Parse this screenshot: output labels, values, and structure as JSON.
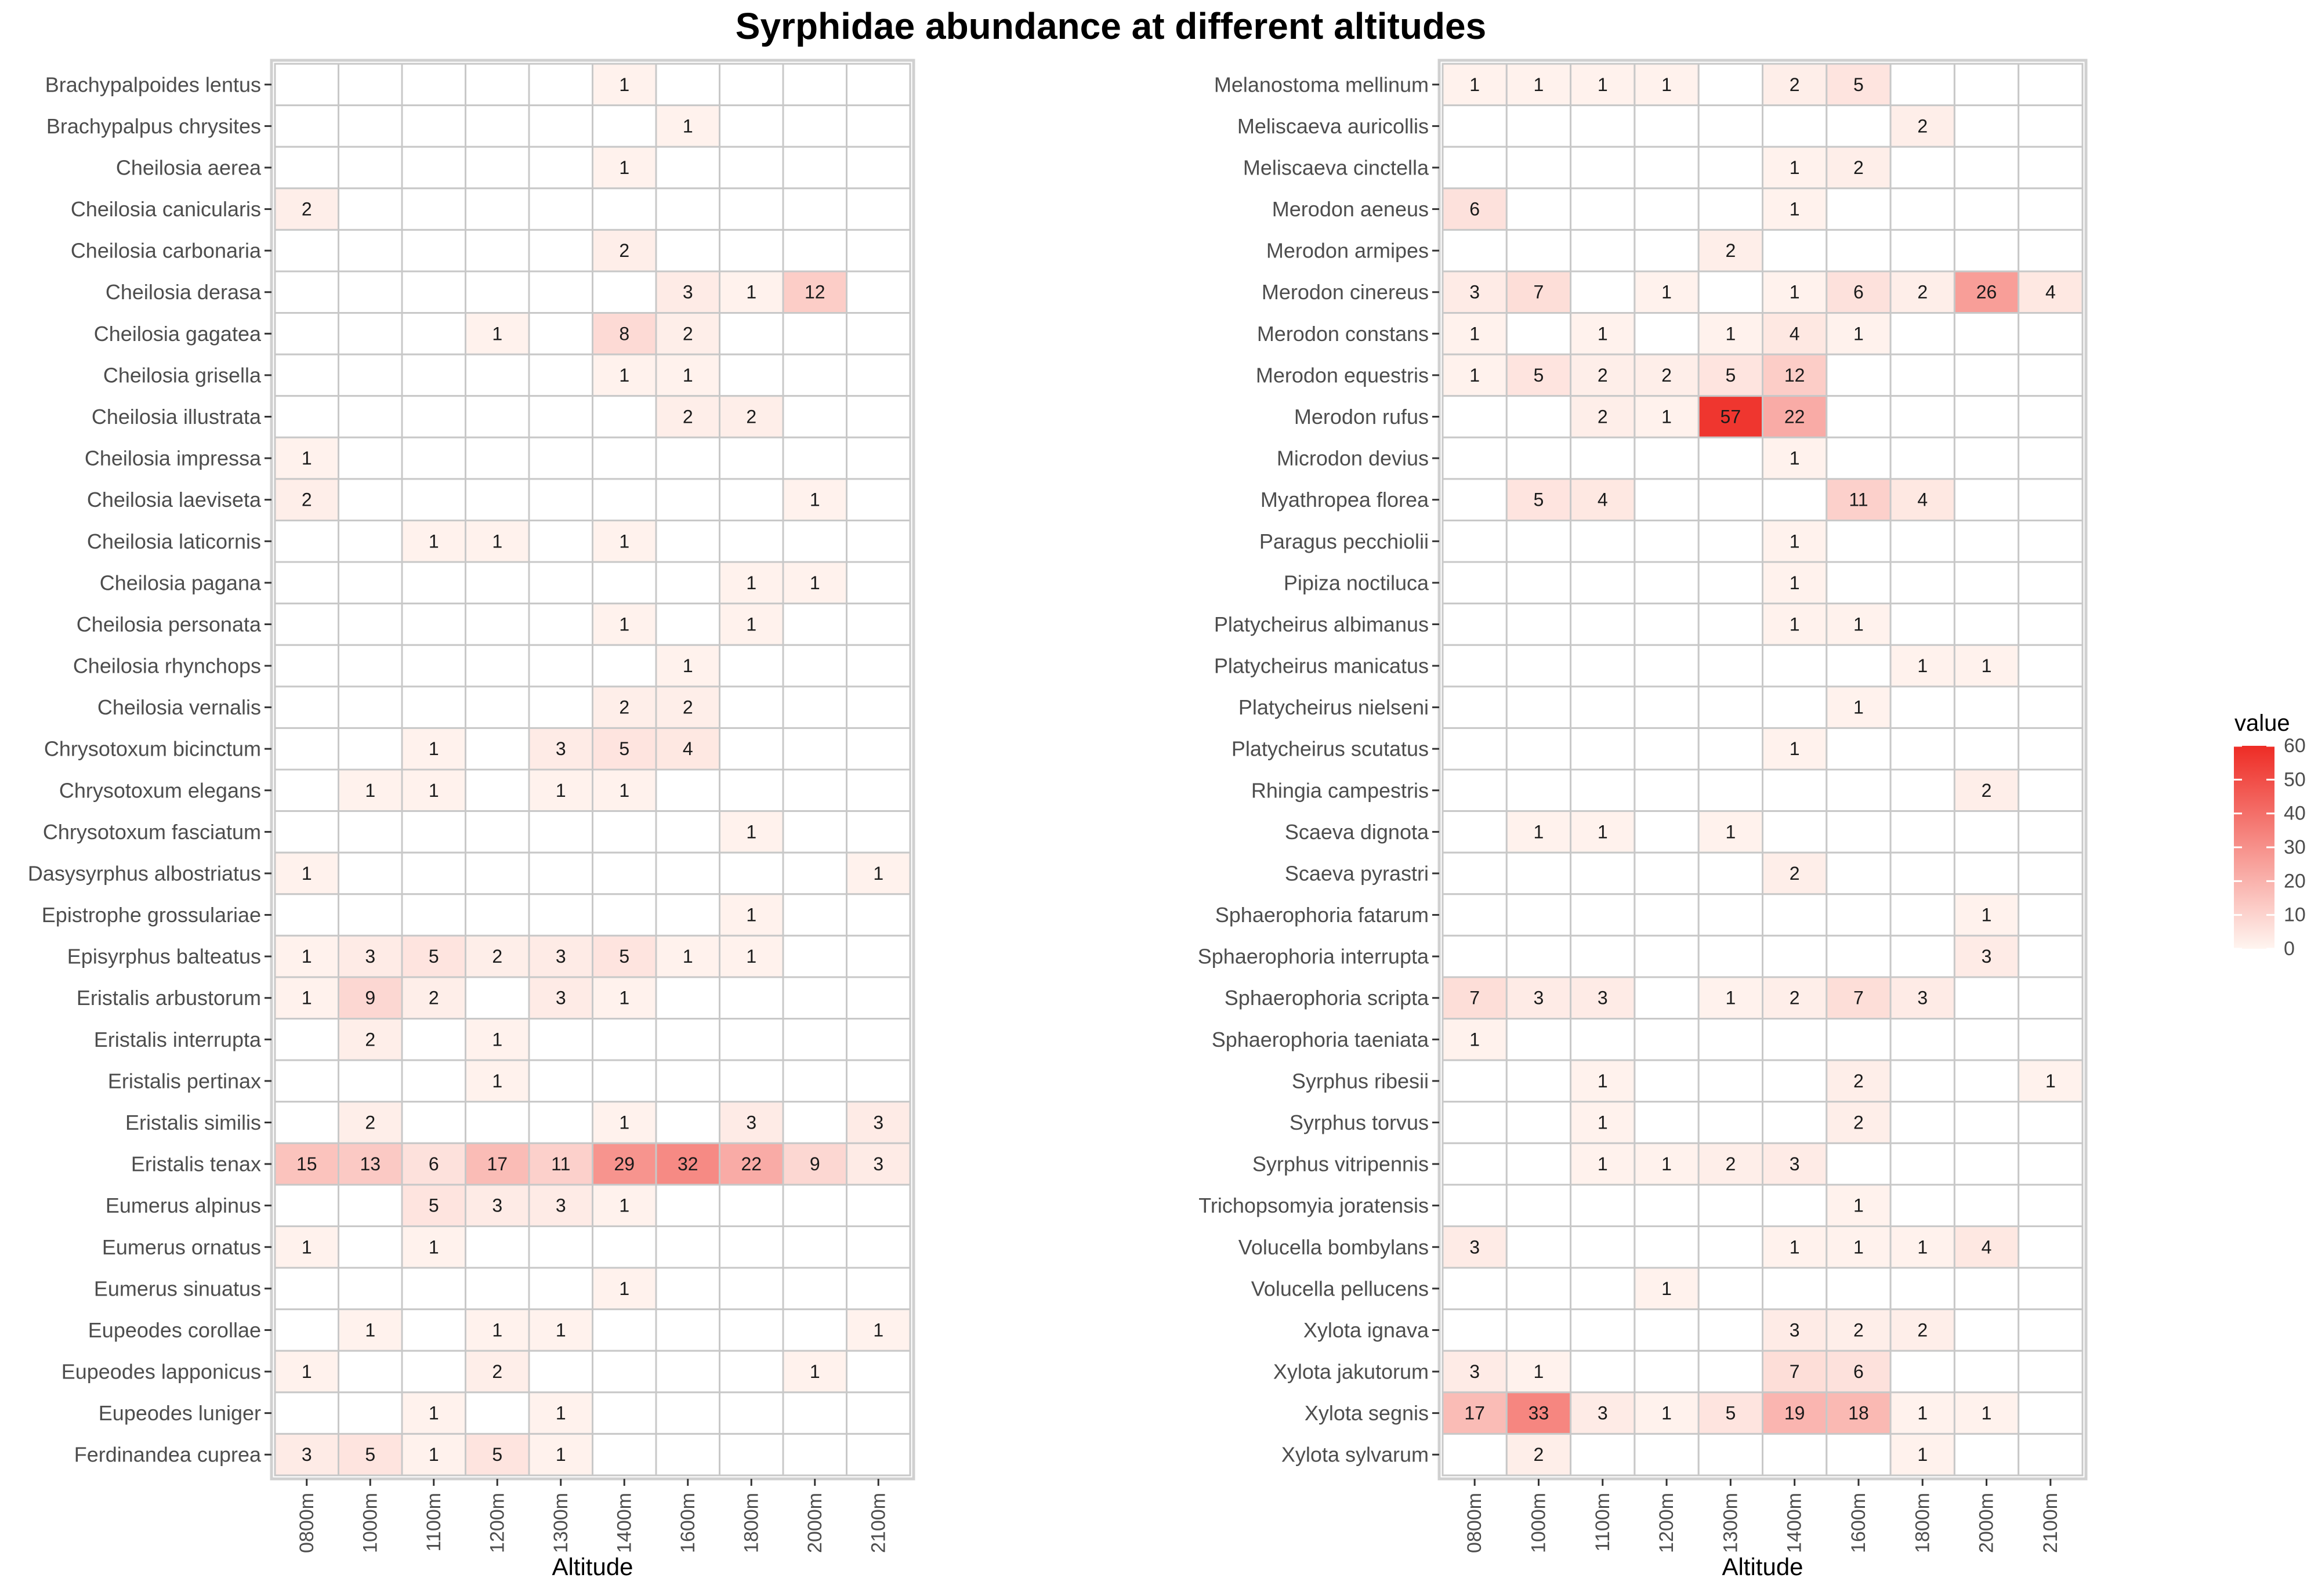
{
  "title": "Syrphidae abundance at different altitudes",
  "chart_data": [
    {
      "type": "heatmap",
      "xlabel": "Altitude",
      "x": [
        "0800m",
        "1000m",
        "1100m",
        "1200m",
        "1300m",
        "1400m",
        "1600m",
        "1800m",
        "2000m",
        "2100m"
      ],
      "y": [
        "Brachypalpoides lentus",
        "Brachypalpus chrysites",
        "Cheilosia aerea",
        "Cheilosia canicularis",
        "Cheilosia carbonaria",
        "Cheilosia derasa",
        "Cheilosia gagatea",
        "Cheilosia grisella",
        "Cheilosia illustrata",
        "Cheilosia impressa",
        "Cheilosia laeviseta",
        "Cheilosia laticornis",
        "Cheilosia pagana",
        "Cheilosia personata",
        "Cheilosia rhynchops",
        "Cheilosia vernalis",
        "Chrysotoxum bicinctum",
        "Chrysotoxum elegans",
        "Chrysotoxum fasciatum",
        "Dasysyrphus albostriatus",
        "Epistrophe grossulariae",
        "Episyrphus balteatus",
        "Eristalis arbustorum",
        "Eristalis interrupta",
        "Eristalis pertinax",
        "Eristalis similis",
        "Eristalis tenax",
        "Eumerus alpinus",
        "Eumerus ornatus",
        "Eumerus sinuatus",
        "Eupeodes corollae",
        "Eupeodes lapponicus",
        "Eupeodes luniger",
        "Ferdinandea cuprea"
      ],
      "values": [
        [
          null,
          null,
          null,
          null,
          null,
          1,
          null,
          null,
          null,
          null
        ],
        [
          null,
          null,
          null,
          null,
          null,
          null,
          1,
          null,
          null,
          null
        ],
        [
          null,
          null,
          null,
          null,
          null,
          1,
          null,
          null,
          null,
          null
        ],
        [
          2,
          null,
          null,
          null,
          null,
          null,
          null,
          null,
          null,
          null
        ],
        [
          null,
          null,
          null,
          null,
          null,
          2,
          null,
          null,
          null,
          null
        ],
        [
          null,
          null,
          null,
          null,
          null,
          null,
          3,
          1,
          12,
          null
        ],
        [
          null,
          null,
          null,
          1,
          null,
          8,
          2,
          null,
          null,
          null
        ],
        [
          null,
          null,
          null,
          null,
          null,
          1,
          1,
          null,
          null,
          null
        ],
        [
          null,
          null,
          null,
          null,
          null,
          null,
          2,
          2,
          null,
          null
        ],
        [
          1,
          null,
          null,
          null,
          null,
          null,
          null,
          null,
          null,
          null
        ],
        [
          2,
          null,
          null,
          null,
          null,
          null,
          null,
          null,
          1,
          null
        ],
        [
          null,
          null,
          1,
          1,
          null,
          1,
          null,
          null,
          null,
          null
        ],
        [
          null,
          null,
          null,
          null,
          null,
          null,
          null,
          1,
          1,
          null
        ],
        [
          null,
          null,
          null,
          null,
          null,
          1,
          null,
          1,
          null,
          null
        ],
        [
          null,
          null,
          null,
          null,
          null,
          null,
          1,
          null,
          null,
          null
        ],
        [
          null,
          null,
          null,
          null,
          null,
          2,
          2,
          null,
          null,
          null
        ],
        [
          null,
          null,
          1,
          null,
          3,
          5,
          4,
          null,
          null,
          null
        ],
        [
          null,
          1,
          1,
          null,
          1,
          1,
          null,
          null,
          null,
          null
        ],
        [
          null,
          null,
          null,
          null,
          null,
          null,
          null,
          1,
          null,
          null
        ],
        [
          1,
          null,
          null,
          null,
          null,
          null,
          null,
          null,
          null,
          1
        ],
        [
          null,
          null,
          null,
          null,
          null,
          null,
          null,
          1,
          null,
          null
        ],
        [
          1,
          3,
          5,
          2,
          3,
          5,
          1,
          1,
          null,
          null
        ],
        [
          1,
          9,
          2,
          null,
          3,
          1,
          null,
          null,
          null,
          null
        ],
        [
          null,
          2,
          null,
          1,
          null,
          null,
          null,
          null,
          null,
          null
        ],
        [
          null,
          null,
          null,
          1,
          null,
          null,
          null,
          null,
          null,
          null
        ],
        [
          null,
          2,
          null,
          null,
          null,
          1,
          null,
          3,
          null,
          3
        ],
        [
          15,
          13,
          6,
          17,
          11,
          29,
          32,
          22,
          9,
          3
        ],
        [
          null,
          null,
          5,
          3,
          3,
          1,
          null,
          null,
          null,
          null
        ],
        [
          1,
          null,
          1,
          null,
          null,
          null,
          null,
          null,
          null,
          null
        ],
        [
          null,
          null,
          null,
          null,
          null,
          1,
          null,
          null,
          null,
          null
        ],
        [
          null,
          1,
          null,
          1,
          1,
          null,
          null,
          null,
          null,
          1
        ],
        [
          1,
          null,
          null,
          2,
          null,
          null,
          null,
          null,
          1,
          null
        ],
        [
          null,
          null,
          1,
          null,
          1,
          null,
          null,
          null,
          null,
          null
        ],
        [
          3,
          5,
          1,
          5,
          1,
          null,
          null,
          null,
          null,
          null
        ]
      ]
    },
    {
      "type": "heatmap",
      "xlabel": "Altitude",
      "x": [
        "0800m",
        "1000m",
        "1100m",
        "1200m",
        "1300m",
        "1400m",
        "1600m",
        "1800m",
        "2000m",
        "2100m"
      ],
      "y": [
        "Melanostoma mellinum",
        "Meliscaeva auricollis",
        "Meliscaeva cinctella",
        "Merodon aeneus",
        "Merodon armipes",
        "Merodon cinereus",
        "Merodon constans",
        "Merodon equestris",
        "Merodon rufus",
        "Microdon devius",
        "Myathropea florea",
        "Paragus pecchiolii",
        "Pipiza noctiluca",
        "Platycheirus albimanus",
        "Platycheirus manicatus",
        "Platycheirus nielseni",
        "Platycheirus scutatus",
        "Rhingia campestris",
        "Scaeva dignota",
        "Scaeva pyrastri",
        "Sphaerophoria fatarum",
        "Sphaerophoria interrupta",
        "Sphaerophoria scripta",
        "Sphaerophoria taeniata",
        "Syrphus ribesii",
        "Syrphus torvus",
        "Syrphus vitripennis",
        "Trichopsomyia joratensis",
        "Volucella bombylans",
        "Volucella pellucens",
        "Xylota ignava",
        "Xylota jakutorum",
        "Xylota segnis",
        "Xylota sylvarum"
      ],
      "values": [
        [
          1,
          1,
          1,
          1,
          null,
          2,
          5,
          null,
          null,
          null
        ],
        [
          null,
          null,
          null,
          null,
          null,
          null,
          null,
          2,
          null,
          null
        ],
        [
          null,
          null,
          null,
          null,
          null,
          1,
          2,
          null,
          null,
          null
        ],
        [
          6,
          null,
          null,
          null,
          null,
          1,
          null,
          null,
          null,
          null
        ],
        [
          null,
          null,
          null,
          null,
          2,
          null,
          null,
          null,
          null,
          null
        ],
        [
          3,
          7,
          null,
          1,
          null,
          1,
          6,
          2,
          26,
          4
        ],
        [
          1,
          null,
          1,
          null,
          1,
          4,
          1,
          null,
          null,
          null
        ],
        [
          1,
          5,
          2,
          2,
          5,
          12,
          null,
          null,
          null,
          null
        ],
        [
          null,
          null,
          2,
          1,
          57,
          22,
          null,
          null,
          null,
          null
        ],
        [
          null,
          null,
          null,
          null,
          null,
          1,
          null,
          null,
          null,
          null
        ],
        [
          null,
          5,
          4,
          null,
          null,
          null,
          11,
          4,
          null,
          null
        ],
        [
          null,
          null,
          null,
          null,
          null,
          1,
          null,
          null,
          null,
          null
        ],
        [
          null,
          null,
          null,
          null,
          null,
          1,
          null,
          null,
          null,
          null
        ],
        [
          null,
          null,
          null,
          null,
          null,
          1,
          1,
          null,
          null,
          null
        ],
        [
          null,
          null,
          null,
          null,
          null,
          null,
          null,
          1,
          1,
          null
        ],
        [
          null,
          null,
          null,
          null,
          null,
          null,
          1,
          null,
          null,
          null
        ],
        [
          null,
          null,
          null,
          null,
          null,
          1,
          null,
          null,
          null,
          null
        ],
        [
          null,
          null,
          null,
          null,
          null,
          null,
          null,
          null,
          2,
          null
        ],
        [
          null,
          1,
          1,
          null,
          1,
          null,
          null,
          null,
          null,
          null
        ],
        [
          null,
          null,
          null,
          null,
          null,
          2,
          null,
          null,
          null,
          null
        ],
        [
          null,
          null,
          null,
          null,
          null,
          null,
          null,
          null,
          1,
          null
        ],
        [
          null,
          null,
          null,
          null,
          null,
          null,
          null,
          null,
          3,
          null
        ],
        [
          7,
          3,
          3,
          null,
          1,
          2,
          7,
          3,
          null,
          null
        ],
        [
          1,
          null,
          null,
          null,
          null,
          null,
          null,
          null,
          null,
          null
        ],
        [
          null,
          null,
          1,
          null,
          null,
          null,
          2,
          null,
          null,
          1
        ],
        [
          null,
          null,
          1,
          null,
          null,
          null,
          2,
          null,
          null,
          null
        ],
        [
          null,
          null,
          1,
          1,
          2,
          3,
          null,
          null,
          null,
          null
        ],
        [
          null,
          null,
          null,
          null,
          null,
          null,
          1,
          null,
          null,
          null
        ],
        [
          3,
          null,
          null,
          null,
          null,
          1,
          1,
          1,
          4,
          null
        ],
        [
          null,
          null,
          null,
          1,
          null,
          null,
          null,
          null,
          null,
          null
        ],
        [
          null,
          null,
          null,
          null,
          null,
          3,
          2,
          2,
          null,
          null
        ],
        [
          3,
          1,
          null,
          null,
          null,
          7,
          6,
          null,
          null,
          null
        ],
        [
          17,
          33,
          3,
          1,
          5,
          19,
          18,
          1,
          1,
          null
        ],
        [
          null,
          2,
          null,
          null,
          null,
          null,
          null,
          1,
          null,
          null
        ]
      ]
    }
  ],
  "legend": {
    "title": "value",
    "range": [
      0,
      60
    ],
    "ticks": [
      60,
      50,
      40,
      30,
      20,
      10,
      0
    ],
    "color_low": "#fff5f0",
    "color_high": "#ee2c25"
  },
  "colors": {
    "panel_background": "#ffffff",
    "panel_border": "#d0d0d0",
    "tile_border": "#c8c8c8"
  }
}
